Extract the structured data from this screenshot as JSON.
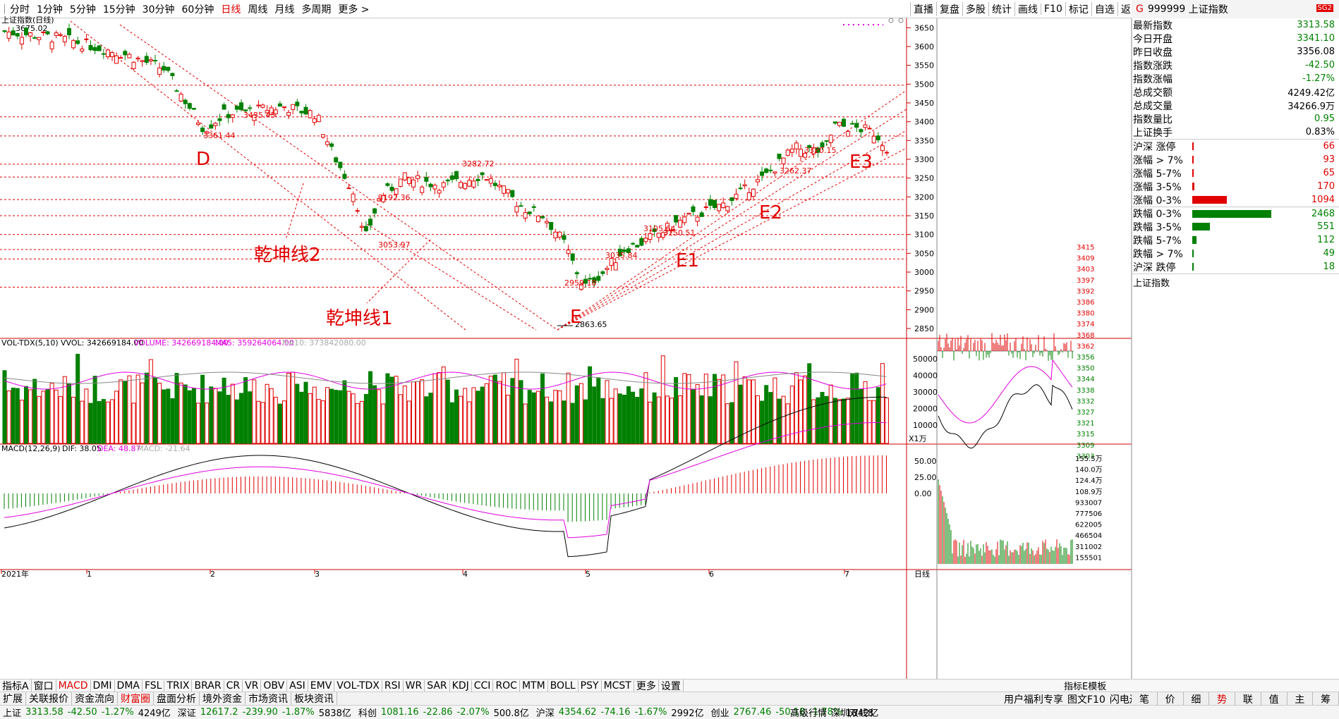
{
  "toolbar": {
    "periods": [
      "分时",
      "1分钟",
      "5分钟",
      "15分钟",
      "30分钟",
      "60分钟",
      "日线",
      "周线",
      "月线",
      "多周期",
      "更多 >"
    ],
    "active_period": "日线",
    "tools": [
      "直播",
      "复盘",
      "多股",
      "统计",
      "画线",
      "F10",
      "标记",
      "自选",
      "返回"
    ]
  },
  "chart_title": "上证指数(日线)",
  "chart_hi_label": "3675.02",
  "price_axis": [
    "3650",
    "3600",
    "3550",
    "3500",
    "3450",
    "3400",
    "3350",
    "3300",
    "3250",
    "3200",
    "3150",
    "3100",
    "3050",
    "3000",
    "2950",
    "2900",
    "2850"
  ],
  "price_labels": [
    "3435.45",
    "3361.44",
    "3282.72",
    "3192.36",
    "3053.97",
    "3150.51",
    "3105.64",
    "3035.84",
    "2959.18",
    "2863.65",
    "3320.15",
    "3262.37"
  ],
  "annotations": [
    "D",
    "E",
    "E1",
    "E2",
    "E3",
    "乾坤线2",
    "乾坤线1"
  ],
  "volume_header": {
    "name": "VOL-TDX(5,10)",
    "vvol": "VVOL: 342669184.00",
    "volume": "VOLUME: 342669184.00",
    "ma5": "MA5: 359264064.00",
    "ma10": "MA10: 373842080.00"
  },
  "volume_axis": [
    "50000",
    "40000",
    "30000",
    "20000",
    "10000"
  ],
  "volume_unit": "X1万",
  "macd_header": {
    "name": "MACD(12,26,9)",
    "dif": "DIF: 38.05",
    "dea": "DEA: 48.87",
    "macd": "MACD: -21.64"
  },
  "macd_axis": [
    "50.00",
    "25.00",
    "0.00"
  ],
  "date_axis": [
    "2021年",
    "1",
    "2",
    "3",
    "4",
    "5",
    "6",
    "7"
  ],
  "date_axis_right": "日线",
  "quote": {
    "code": "999999",
    "name": "上证指数",
    "tag": "SG2",
    "rows": [
      {
        "label": "最新指数",
        "value": "3313.58",
        "color": "green"
      },
      {
        "label": "今日开盘",
        "value": "3341.10",
        "color": "green"
      },
      {
        "label": "昨日收盘",
        "value": "3356.08",
        "color": "black"
      },
      {
        "label": "指数涨跌",
        "value": "-42.50",
        "color": "green"
      },
      {
        "label": "指数涨幅",
        "value": "-1.27%",
        "color": "green"
      },
      {
        "label": "总成交额",
        "value": "4249.42亿",
        "color": "black"
      },
      {
        "label": "总成交量",
        "value": "34266.9万",
        "color": "black"
      },
      {
        "label": "指数量比",
        "value": "0.95",
        "color": "green"
      },
      {
        "label": "上证换手",
        "value": "0.83%",
        "color": "black"
      }
    ],
    "dist": [
      {
        "label": "沪深 涨停",
        "value": "66",
        "color": "red",
        "frac": 0.01
      },
      {
        "label": "涨幅 > 7%",
        "value": "93",
        "color": "red",
        "frac": 0.012
      },
      {
        "label": "涨幅 5-7%",
        "value": "65",
        "color": "red",
        "frac": 0.01
      },
      {
        "label": "涨幅 3-5%",
        "value": "170",
        "color": "red",
        "frac": 0.02
      },
      {
        "label": "涨幅 0-3%",
        "value": "1094",
        "color": "red",
        "frac": 0.35
      },
      {
        "label": "跌幅 0-3%",
        "value": "2468",
        "color": "green",
        "frac": 0.8
      },
      {
        "label": "跌幅 3-5%",
        "value": "551",
        "color": "green",
        "frac": 0.18
      },
      {
        "label": "跌幅 5-7%",
        "value": "112",
        "color": "green",
        "frac": 0.04
      },
      {
        "label": "跌幅 > 7%",
        "value": "49",
        "color": "green",
        "frac": 0.01
      },
      {
        "label": "沪深 跌停",
        "value": "18",
        "color": "green",
        "frac": 0.005
      }
    ]
  },
  "mini_title": "上证指数",
  "mini_price_axis": [
    "3415",
    "3409",
    "3403",
    "3397",
    "3392",
    "3386",
    "3380",
    "3374",
    "3368",
    "3362",
    "3356",
    "3350",
    "3344",
    "3338",
    "3332",
    "3327",
    "3321",
    "3315",
    "3309",
    "3303"
  ],
  "mini_vol_axis": [
    "155.5万",
    "140.0万",
    "124.4万",
    "108.9万",
    "933007",
    "777506",
    "622005",
    "466504",
    "311002",
    "155501"
  ],
  "indicators": [
    "指标A",
    "窗口",
    "MACD",
    "DMI",
    "DMA",
    "FSL",
    "TRIX",
    "BRAR",
    "CR",
    "VR",
    "OBV",
    "ASI",
    "EMV",
    "VOL-TDX",
    "RSI",
    "WR",
    "SAR",
    "KDJ",
    "CCI",
    "ROC",
    "MTM",
    "BOLL",
    "PSY",
    "MCST",
    "更多",
    "设置"
  ],
  "active_indicator": "MACD",
  "indbar_right": [
    "指标E",
    "模",
    "板"
  ],
  "menu": [
    "扩展",
    "关联报价",
    "资金流向",
    "财富圈",
    "盘面分析",
    "境外资金",
    "市场资讯",
    "板块资讯"
  ],
  "active_menu": "财富圈",
  "menu_right": [
    "用户福利专享",
    "图文F10",
    "闪电边栏"
  ],
  "tabs": [
    "笔",
    "价",
    "细",
    "势",
    "联",
    "值",
    "主",
    "筹"
  ],
  "active_tab": "势",
  "status": [
    {
      "name": "上证",
      "val": "3313.58",
      "chg": "-42.50",
      "pct": "-1.27%",
      "amt": "4249亿"
    },
    {
      "name": "深证",
      "val": "12617.2",
      "chg": "-239.90",
      "pct": "-1.87%",
      "amt": "5838亿"
    },
    {
      "name": "科创",
      "val": "1081.16",
      "chg": "-22.86",
      "pct": "-2.07%",
      "amt": "500.8亿"
    },
    {
      "name": "沪深",
      "val": "4354.62",
      "chg": "-74.16",
      "pct": "-1.67%",
      "amt": "2992亿"
    },
    {
      "name": "创业",
      "val": "2767.46",
      "chg": "-50.18",
      "pct": "-1.78%",
      "amt": "1842亿"
    }
  ],
  "status_right": [
    "高级行情",
    "深圳双线8"
  ],
  "colors": {
    "up": "#e00000",
    "down": "#008000",
    "ma_pink": "#e000e0",
    "grid_red": "#e00000"
  }
}
